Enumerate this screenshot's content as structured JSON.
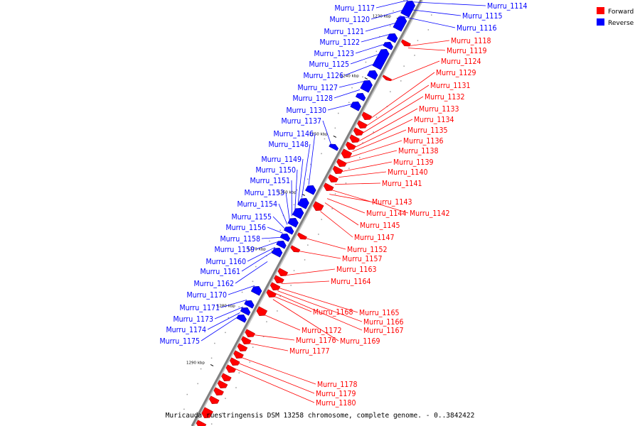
{
  "legend": [
    {
      "label": "Forward",
      "color": "#ff0000"
    },
    {
      "label": "Reverse",
      "color": "#0000ff"
    }
  ],
  "colors": {
    "forward": "#ff0000",
    "reverse": "#0000ff",
    "backbone": "#808080"
  },
  "scale_labels": [
    "1230 kbp",
    "1240 kbp",
    "1250 kbp",
    "1260 kbp",
    "1270 kbp",
    "1280 kbp",
    "1290 kbp"
  ],
  "footer": "Muricauda ruestringensis DSM 13258 chromosome, complete genome. - 0..3842422",
  "genes": [
    {
      "name": "Murru_1114",
      "strand": "reverse"
    },
    {
      "name": "Murru_1115",
      "strand": "reverse"
    },
    {
      "name": "Murru_1116",
      "strand": "reverse"
    },
    {
      "name": "Murru_1117",
      "strand": "reverse"
    },
    {
      "name": "Murru_1118",
      "strand": "forward"
    },
    {
      "name": "Murru_1119",
      "strand": "forward"
    },
    {
      "name": "Murru_1120",
      "strand": "reverse"
    },
    {
      "name": "Murru_1121",
      "strand": "reverse"
    },
    {
      "name": "Murru_1122",
      "strand": "reverse"
    },
    {
      "name": "Murru_1123",
      "strand": "reverse"
    },
    {
      "name": "Murru_1124",
      "strand": "forward"
    },
    {
      "name": "Murru_1125",
      "strand": "reverse"
    },
    {
      "name": "Murru_1126",
      "strand": "reverse"
    },
    {
      "name": "Murru_1127",
      "strand": "reverse"
    },
    {
      "name": "Murru_1128",
      "strand": "reverse"
    },
    {
      "name": "Murru_1129",
      "strand": "forward"
    },
    {
      "name": "Murru_1130",
      "strand": "reverse"
    },
    {
      "name": "Murru_1131",
      "strand": "forward"
    },
    {
      "name": "Murru_1132",
      "strand": "forward"
    },
    {
      "name": "Murru_1133",
      "strand": "forward"
    },
    {
      "name": "Murru_1134",
      "strand": "forward"
    },
    {
      "name": "Murru_1135",
      "strand": "forward"
    },
    {
      "name": "Murru_1136",
      "strand": "forward"
    },
    {
      "name": "Murru_1137",
      "strand": "reverse"
    },
    {
      "name": "Murru_1138",
      "strand": "forward"
    },
    {
      "name": "Murru_1139",
      "strand": "forward"
    },
    {
      "name": "Murru_1140",
      "strand": "forward"
    },
    {
      "name": "Murru_1141",
      "strand": "forward"
    },
    {
      "name": "Murru_1142",
      "strand": "forward"
    },
    {
      "name": "Murru_1143",
      "strand": "forward"
    },
    {
      "name": "Murru_1144",
      "strand": "forward"
    },
    {
      "name": "Murru_1145",
      "strand": "forward"
    },
    {
      "name": "Murru_1146",
      "strand": "reverse"
    },
    {
      "name": "Murru_1147",
      "strand": "forward"
    },
    {
      "name": "Murru_1148",
      "strand": "reverse"
    },
    {
      "name": "Murru_1149",
      "strand": "reverse"
    },
    {
      "name": "Murru_1150",
      "strand": "reverse"
    },
    {
      "name": "Murru_1151",
      "strand": "reverse"
    },
    {
      "name": "Murru_1152",
      "strand": "forward"
    },
    {
      "name": "Murru_1153",
      "strand": "reverse"
    },
    {
      "name": "Murru_1154",
      "strand": "reverse"
    },
    {
      "name": "Murru_1155",
      "strand": "reverse"
    },
    {
      "name": "Murru_1156",
      "strand": "reverse"
    },
    {
      "name": "Murru_1157",
      "strand": "forward"
    },
    {
      "name": "Murru_1158",
      "strand": "reverse"
    },
    {
      "name": "Murru_1159",
      "strand": "reverse"
    },
    {
      "name": "Murru_1160",
      "strand": "reverse"
    },
    {
      "name": "Murru_1161",
      "strand": "reverse"
    },
    {
      "name": "Murru_1162",
      "strand": "reverse"
    },
    {
      "name": "Murru_1163",
      "strand": "forward"
    },
    {
      "name": "Murru_1164",
      "strand": "forward"
    },
    {
      "name": "Murru_1165",
      "strand": "forward"
    },
    {
      "name": "Murru_1166",
      "strand": "forward"
    },
    {
      "name": "Murru_1167",
      "strand": "forward"
    },
    {
      "name": "Murru_1168",
      "strand": "forward"
    },
    {
      "name": "Murru_1169",
      "strand": "forward"
    },
    {
      "name": "Murru_1170",
      "strand": "reverse"
    },
    {
      "name": "Murru_1171",
      "strand": "reverse"
    },
    {
      "name": "Murru_1172",
      "strand": "forward"
    },
    {
      "name": "Murru_1173",
      "strand": "reverse"
    },
    {
      "name": "Murru_1174",
      "strand": "reverse"
    },
    {
      "name": "Murru_1175",
      "strand": "reverse"
    },
    {
      "name": "Murru_1176",
      "strand": "forward"
    },
    {
      "name": "Murru_1177",
      "strand": "forward"
    },
    {
      "name": "Murru_1178",
      "strand": "forward"
    },
    {
      "name": "Murru_1179",
      "strand": "forward"
    },
    {
      "name": "Murru_1180",
      "strand": "forward"
    }
  ]
}
